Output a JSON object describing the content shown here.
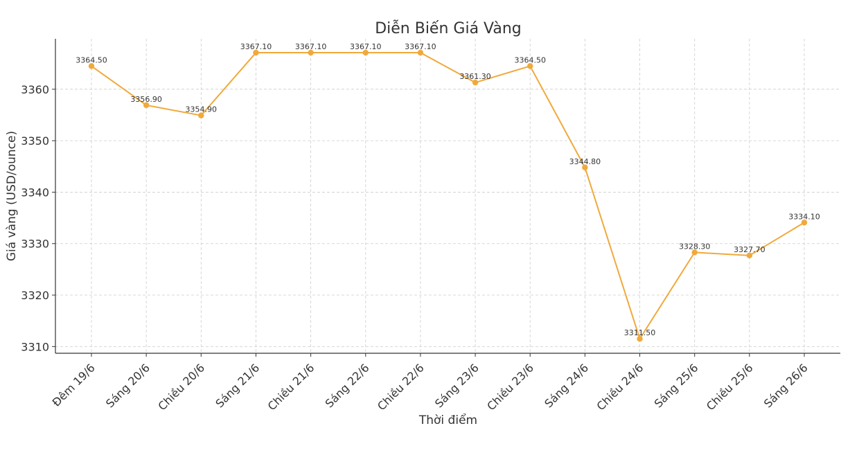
{
  "chart_data": {
    "type": "line",
    "title": "Diễn Biến Giá Vàng",
    "xlabel": "Thời điểm",
    "ylabel": "Giá vàng (USD/ounce)",
    "categories": [
      "Đêm 19/6",
      "Sáng 20/6",
      "Chiều 20/6",
      "Sáng 21/6",
      "Chiều 21/6",
      "Sáng 22/6",
      "Chiều 22/6",
      "Sáng 23/6",
      "Chiều 23/6",
      "Sáng 24/6",
      "Chiều 24/6",
      "Sáng 25/6",
      "Chiều 25/6",
      "Sáng 26/6"
    ],
    "series": [
      {
        "values": [
          3364.5,
          3356.9,
          3354.9,
          3367.1,
          3367.1,
          3367.1,
          3367.1,
          3361.3,
          3364.5,
          3344.8,
          3311.5,
          3328.3,
          3327.7,
          3334.1
        ],
        "labels": [
          "3364.50",
          "3356.90",
          "3354.90",
          "3367.10",
          "3367.10",
          "3367.10",
          "3367.10",
          "3361.30",
          "3364.50",
          "3344.80",
          "3311.50",
          "3328.30",
          "3327.70",
          "3334.10"
        ],
        "color": "#f0a93b"
      }
    ],
    "yticks": [
      "3310",
      "3320",
      "3330",
      "3340",
      "3350",
      "3360"
    ],
    "ylim": [
      3308.7,
      3369.8
    ],
    "grid": true,
    "legend": "none"
  }
}
